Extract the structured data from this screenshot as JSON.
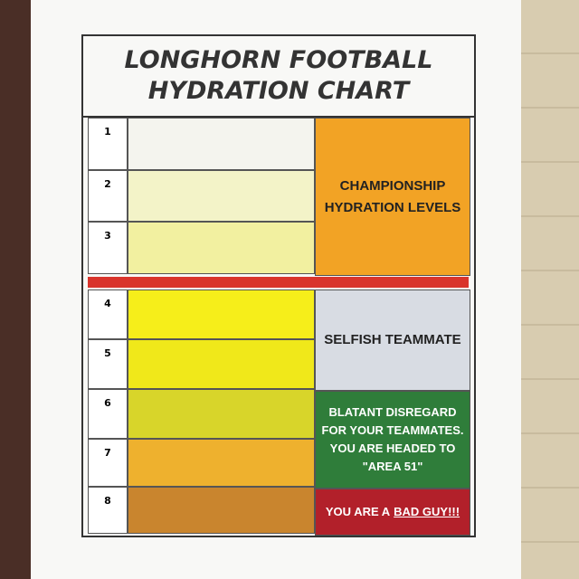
{
  "title": {
    "line1": "LONGHORN FOOTBALL",
    "line2": "HYDRATION CHART"
  },
  "levels": [
    {
      "number": "1",
      "color": "#f4f4ee"
    },
    {
      "number": "2",
      "color": "#f3f3c8"
    },
    {
      "number": "3",
      "color": "#f2f0a0"
    },
    {
      "number": "4",
      "color": "#f6ee1a"
    },
    {
      "number": "5",
      "color": "#f0e81a"
    },
    {
      "number": "6",
      "color": "#d8d52a"
    },
    {
      "number": "7",
      "color": "#eeb12e"
    },
    {
      "number": "8",
      "color": "#c9852e"
    }
  ],
  "zones": [
    {
      "label": "CHAMPIONSHIP HYDRATION LEVELS",
      "color": "#f2a325"
    },
    {
      "label": "SELFISH TEAMMATE",
      "color": "#d8dce3"
    },
    {
      "label": "BLATANT DISREGARD FOR YOUR TEAMMATES. YOU ARE HEADED TO \"AREA 51\"",
      "color": "#2f7d3a"
    },
    {
      "label_parts": [
        "YOU ARE A",
        "BAD GUY!!!"
      ],
      "color": "#b2202a"
    }
  ]
}
